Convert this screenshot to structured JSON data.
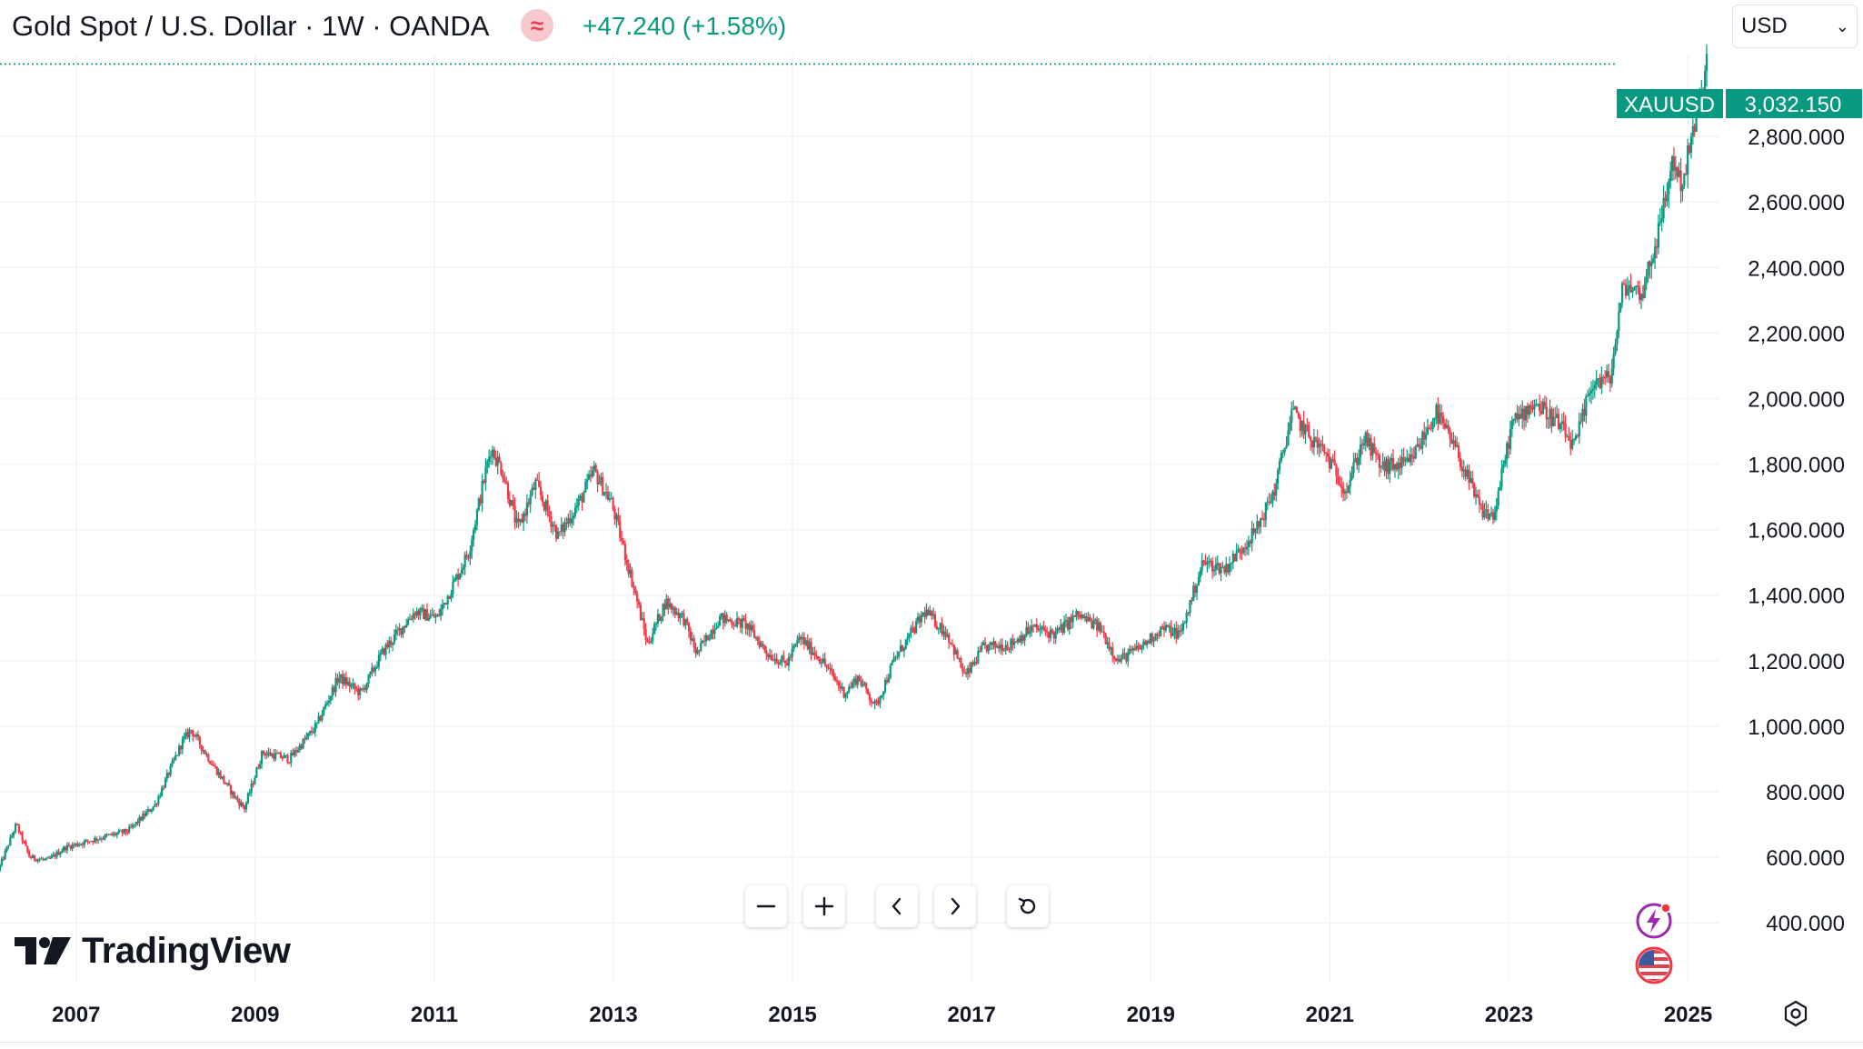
{
  "header": {
    "title": "Gold Spot / U.S. Dollar · 1W · OANDA",
    "legend_icon": "wave-approx-icon",
    "change": "+47.240 (+1.58%)",
    "currency": "USD"
  },
  "colors": {
    "up": "#089981",
    "down": "#f23645",
    "grid": "#f0f3fa",
    "axis_text": "#131722",
    "price_line": "#089981"
  },
  "current_price": {
    "symbol": "XAUUSD",
    "value": "3,032.150",
    "numeric": 3032.15
  },
  "nav_toolbar": [
    {
      "name": "zoom-out-button",
      "icon": "minus-icon"
    },
    {
      "name": "zoom-in-button",
      "icon": "plus-icon"
    },
    {
      "name": "scroll-left-button",
      "icon": "chevron-left-icon"
    },
    {
      "name": "scroll-right-button",
      "icon": "chevron-right-icon"
    },
    {
      "name": "reset-chart-button",
      "icon": "reset-icon"
    }
  ],
  "logo": {
    "text": "TradingView"
  },
  "chart_data": {
    "type": "candlestick",
    "interval": "1W",
    "x_labels": [
      "2007",
      "2009",
      "2011",
      "2013",
      "2015",
      "2017",
      "2019",
      "2021",
      "2023",
      "2025"
    ],
    "y_labels": [
      "400.000",
      "600.000",
      "800.000",
      "1,000.000",
      "1,200.000",
      "1,400.000",
      "1,600.000",
      "1,800.000",
      "2,000.000",
      "2,200.000",
      "2,400.000",
      "2,600.000",
      "2,800.000"
    ],
    "y_ticks": [
      400,
      600,
      800,
      1000,
      1200,
      1400,
      1600,
      1800,
      2000,
      2200,
      2400,
      2600,
      2800
    ],
    "ylim": [
      220,
      3050
    ],
    "xlim": [
      2006.15,
      2025.35
    ],
    "grid": true,
    "path_points": [
      [
        2006.15,
        560
      ],
      [
        2006.35,
        700
      ],
      [
        2006.5,
        600
      ],
      [
        2006.7,
        590
      ],
      [
        2006.9,
        630
      ],
      [
        2007.3,
        660
      ],
      [
        2007.6,
        680
      ],
      [
        2007.9,
        760
      ],
      [
        2008.2,
        950
      ],
      [
        2008.3,
        990
      ],
      [
        2008.55,
        880
      ],
      [
        2008.8,
        780
      ],
      [
        2008.9,
        750
      ],
      [
        2009.1,
        920
      ],
      [
        2009.4,
        900
      ],
      [
        2009.7,
        1000
      ],
      [
        2009.95,
        1150
      ],
      [
        2010.2,
        1100
      ],
      [
        2010.45,
        1230
      ],
      [
        2010.8,
        1350
      ],
      [
        2011.05,
        1330
      ],
      [
        2011.4,
        1530
      ],
      [
        2011.65,
        1850
      ],
      [
        2011.78,
        1780
      ],
      [
        2011.95,
        1600
      ],
      [
        2012.15,
        1740
      ],
      [
        2012.4,
        1580
      ],
      [
        2012.65,
        1690
      ],
      [
        2012.8,
        1780
      ],
      [
        2013.0,
        1680
      ],
      [
        2013.25,
        1420
      ],
      [
        2013.4,
        1250
      ],
      [
        2013.6,
        1380
      ],
      [
        2013.8,
        1330
      ],
      [
        2013.95,
        1220
      ],
      [
        2014.2,
        1330
      ],
      [
        2014.5,
        1310
      ],
      [
        2014.75,
        1220
      ],
      [
        2014.95,
        1190
      ],
      [
        2015.1,
        1270
      ],
      [
        2015.35,
        1200
      ],
      [
        2015.6,
        1100
      ],
      [
        2015.75,
        1150
      ],
      [
        2015.95,
        1060
      ],
      [
        2016.15,
        1200
      ],
      [
        2016.5,
        1350
      ],
      [
        2016.75,
        1280
      ],
      [
        2016.95,
        1150
      ],
      [
        2017.15,
        1240
      ],
      [
        2017.45,
        1250
      ],
      [
        2017.7,
        1300
      ],
      [
        2017.95,
        1280
      ],
      [
        2018.2,
        1340
      ],
      [
        2018.45,
        1300
      ],
      [
        2018.65,
        1200
      ],
      [
        2018.9,
        1240
      ],
      [
        2019.15,
        1300
      ],
      [
        2019.35,
        1280
      ],
      [
        2019.6,
        1500
      ],
      [
        2019.85,
        1480
      ],
      [
        2020.05,
        1550
      ],
      [
        2020.2,
        1600
      ],
      [
        2020.4,
        1720
      ],
      [
        2020.6,
        1960
      ],
      [
        2020.8,
        1880
      ],
      [
        2020.95,
        1840
      ],
      [
        2021.2,
        1720
      ],
      [
        2021.4,
        1880
      ],
      [
        2021.6,
        1790
      ],
      [
        2021.9,
        1800
      ],
      [
        2022.1,
        1900
      ],
      [
        2022.2,
        1960
      ],
      [
        2022.45,
        1830
      ],
      [
        2022.7,
        1660
      ],
      [
        2022.85,
        1640
      ],
      [
        2023.05,
        1920
      ],
      [
        2023.3,
        1990
      ],
      [
        2023.55,
        1930
      ],
      [
        2023.75,
        1850
      ],
      [
        2023.95,
        2050
      ],
      [
        2024.15,
        2060
      ],
      [
        2024.3,
        2350
      ],
      [
        2024.5,
        2320
      ],
      [
        2024.7,
        2520
      ],
      [
        2024.85,
        2730
      ],
      [
        2024.95,
        2650
      ],
      [
        2025.05,
        2780
      ],
      [
        2025.2,
        2960
      ],
      [
        2025.22,
        3032
      ]
    ]
  }
}
